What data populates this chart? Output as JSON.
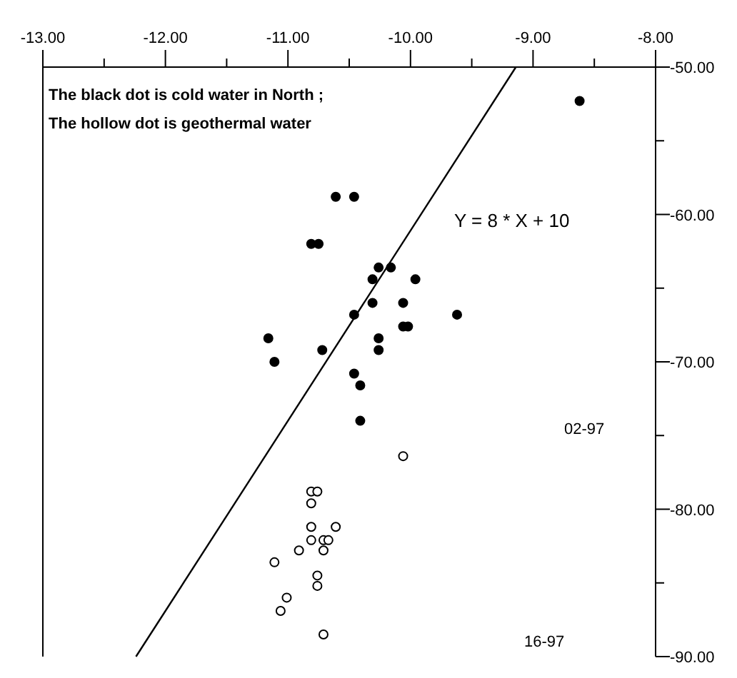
{
  "chart_data": {
    "type": "scatter",
    "xlim": [
      -13,
      -8
    ],
    "ylim": [
      -90,
      -50
    ],
    "xticks": [
      {
        "value": -13,
        "label": "-13.00"
      },
      {
        "value": -12.5,
        "label": null
      },
      {
        "value": -12,
        "label": "-12.00"
      },
      {
        "value": -11.5,
        "label": null
      },
      {
        "value": -11,
        "label": "-11.00"
      },
      {
        "value": -10.5,
        "label": null
      },
      {
        "value": -10,
        "label": "-10.00"
      },
      {
        "value": -9.5,
        "label": null
      },
      {
        "value": -9,
        "label": "-9.00"
      },
      {
        "value": -8.5,
        "label": null
      },
      {
        "value": -8,
        "label": "-8.00"
      }
    ],
    "yticks": [
      {
        "value": -50,
        "label": "-50.00"
      },
      {
        "value": -55,
        "label": null
      },
      {
        "value": -60,
        "label": "-60.00"
      },
      {
        "value": -65,
        "label": null
      },
      {
        "value": -70,
        "label": "-70.00"
      },
      {
        "value": -75,
        "label": null
      },
      {
        "value": -80,
        "label": "-80.00"
      },
      {
        "value": -85,
        "label": null
      },
      {
        "value": -90,
        "label": "-90.00"
      }
    ],
    "marker": "circle",
    "series": [
      {
        "color": "#000000",
        "x": [
          -10.61,
          -10.46,
          -10.81,
          -10.75,
          -10.26,
          -10.16,
          -10.31,
          -9.96,
          -10.31,
          -10.06,
          -10.46,
          -9.62,
          -10.06,
          -10.02,
          -11.16,
          -10.26,
          -10.72,
          -10.26,
          -11.11,
          -10.46,
          -10.41,
          -10.41,
          -8.62
        ],
        "values": [
          -58.8,
          -58.8,
          -62.0,
          -62.0,
          -63.6,
          -63.6,
          -64.4,
          -64.4,
          -66.0,
          -66.0,
          -66.8,
          -66.8,
          -67.6,
          -67.6,
          -68.4,
          -68.4,
          -69.2,
          -69.2,
          -70.0,
          -70.8,
          -71.6,
          -74.0,
          -52.3
        ]
      },
      {
        "color": "#ffffff",
        "x": [
          -10.06,
          -10.81,
          -10.76,
          -10.81,
          -10.81,
          -10.61,
          -10.81,
          -10.71,
          -10.67,
          -10.91,
          -10.71,
          -11.11,
          -10.76,
          -10.76,
          -11.01,
          -11.06,
          -10.71
        ],
        "values": [
          -76.4,
          -78.8,
          -78.8,
          -79.6,
          -81.2,
          -81.2,
          -82.1,
          -82.1,
          -82.1,
          -82.8,
          -82.8,
          -83.6,
          -84.5,
          -85.2,
          -86.0,
          -86.9,
          -88.5
        ]
      },
      {
        "type": "line",
        "color": "#000000",
        "marker": "none",
        "x": [
          -12.24,
          -9.14
        ],
        "values": [
          -90,
          -50
        ]
      }
    ],
    "annotations": [
      "The black dot is cold water in North ;",
      "The hollow dot is geothermal water",
      "Y = 8 * X + 10",
      "02-97",
      "16-97"
    ]
  }
}
